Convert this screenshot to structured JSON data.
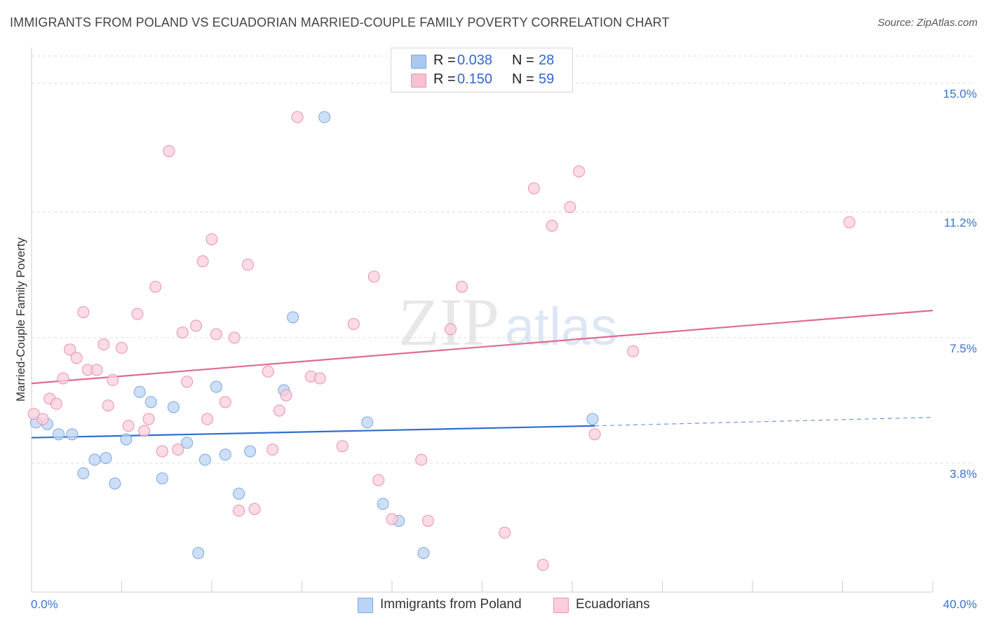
{
  "title": "IMMIGRANTS FROM POLAND VS ECUADORIAN MARRIED-COUPLE FAMILY POVERTY CORRELATION CHART",
  "source": "Source: ZipAtlas.com",
  "watermark": {
    "zip": "ZIP",
    "atlas": "atlas"
  },
  "legend_top": {
    "rows": [
      {
        "r_label": "R =",
        "r_value": "0.038",
        "n_label": "N =",
        "n_value": "28",
        "color": "#aac8f0",
        "border": "#7aa6e0"
      },
      {
        "r_label": "R =",
        "r_value": "0.150",
        "n_label": "N =",
        "n_value": "59",
        "color": "#f8c0d0",
        "border": "#ec90ac"
      }
    ]
  },
  "legend_bottom": [
    {
      "label": "Immigrants from Poland",
      "color": "#bcd4f4",
      "border": "#7aa6e0"
    },
    {
      "label": "Ecuadorians",
      "color": "#f9cfdc",
      "border": "#ec90ac"
    }
  ],
  "chart_data": {
    "type": "scatter",
    "title": "IMMIGRANTS FROM POLAND VS ECUADORIAN MARRIED-COUPLE FAMILY POVERTY CORRELATION CHART",
    "xlabel": "",
    "ylabel": "Married-Couple Family Poverty",
    "xlim": [
      0,
      40
    ],
    "ylim": [
      0,
      15.8
    ],
    "x_tick_labels": [
      "0.0%",
      "40.0%"
    ],
    "y_ticks": [
      3.8,
      7.5,
      11.2,
      15.0
    ],
    "y_tick_labels": [
      "3.8%",
      "7.5%",
      "11.2%",
      "15.0%"
    ],
    "series": [
      {
        "name": "Immigrants from Poland",
        "color": "#7aa6e0",
        "fill": "#bcd4f4",
        "line_color": "#2f6fcf",
        "trend": {
          "x0": 0,
          "y0": 4.55,
          "x1": 25,
          "y1": 4.9,
          "dash_to_x": 40,
          "dash_to_y": 5.15
        },
        "points": [
          [
            0.2,
            5.0
          ],
          [
            0.7,
            4.95
          ],
          [
            1.2,
            4.65
          ],
          [
            1.8,
            4.65
          ],
          [
            2.3,
            3.5
          ],
          [
            2.8,
            3.9
          ],
          [
            3.3,
            3.95
          ],
          [
            3.7,
            3.2
          ],
          [
            4.2,
            4.5
          ],
          [
            4.8,
            5.9
          ],
          [
            5.3,
            5.6
          ],
          [
            5.8,
            3.35
          ],
          [
            6.3,
            5.45
          ],
          [
            6.9,
            4.4
          ],
          [
            7.4,
            1.15
          ],
          [
            7.7,
            3.9
          ],
          [
            8.2,
            6.05
          ],
          [
            8.6,
            4.05
          ],
          [
            9.2,
            2.9
          ],
          [
            9.7,
            4.15
          ],
          [
            11.2,
            5.95
          ],
          [
            11.6,
            8.1
          ],
          [
            13.0,
            14.0
          ],
          [
            14.9,
            5.0
          ],
          [
            15.6,
            2.6
          ],
          [
            16.3,
            2.1
          ],
          [
            17.4,
            1.15
          ],
          [
            24.9,
            5.1
          ]
        ]
      },
      {
        "name": "Ecuadorians",
        "color": "#ec90ac",
        "fill": "#f9cfdc",
        "line_color": "#e06a92",
        "trend": {
          "x0": 0,
          "y0": 6.15,
          "x1": 40,
          "y1": 8.3
        },
        "points": [
          [
            0.1,
            5.25
          ],
          [
            0.5,
            5.1
          ],
          [
            0.8,
            5.7
          ],
          [
            1.1,
            5.55
          ],
          [
            1.4,
            6.3
          ],
          [
            1.7,
            7.15
          ],
          [
            2.0,
            6.9
          ],
          [
            2.3,
            8.25
          ],
          [
            2.5,
            6.55
          ],
          [
            2.9,
            6.55
          ],
          [
            3.2,
            7.3
          ],
          [
            3.4,
            5.5
          ],
          [
            3.6,
            6.25
          ],
          [
            4.0,
            7.2
          ],
          [
            4.3,
            4.9
          ],
          [
            4.7,
            8.2
          ],
          [
            5.0,
            4.75
          ],
          [
            5.2,
            5.1
          ],
          [
            5.5,
            9.0
          ],
          [
            5.8,
            4.15
          ],
          [
            6.1,
            13.0
          ],
          [
            6.5,
            4.2
          ],
          [
            6.7,
            7.65
          ],
          [
            6.9,
            6.2
          ],
          [
            7.3,
            7.85
          ],
          [
            7.6,
            9.75
          ],
          [
            7.8,
            5.1
          ],
          [
            8.0,
            10.4
          ],
          [
            8.2,
            7.6
          ],
          [
            8.6,
            5.6
          ],
          [
            9.0,
            7.5
          ],
          [
            9.2,
            2.4
          ],
          [
            9.6,
            9.65
          ],
          [
            9.9,
            2.45
          ],
          [
            10.5,
            6.5
          ],
          [
            10.7,
            4.2
          ],
          [
            11.0,
            5.35
          ],
          [
            11.3,
            5.8
          ],
          [
            11.8,
            14.0
          ],
          [
            12.4,
            6.35
          ],
          [
            12.8,
            6.3
          ],
          [
            13.8,
            4.3
          ],
          [
            14.3,
            7.9
          ],
          [
            15.2,
            9.3
          ],
          [
            15.4,
            3.3
          ],
          [
            16.0,
            2.15
          ],
          [
            17.3,
            3.9
          ],
          [
            17.6,
            2.1
          ],
          [
            18.6,
            7.75
          ],
          [
            19.1,
            9.0
          ],
          [
            21.0,
            1.75
          ],
          [
            22.3,
            11.9
          ],
          [
            22.7,
            0.8
          ],
          [
            23.1,
            10.8
          ],
          [
            23.9,
            11.35
          ],
          [
            24.3,
            12.4
          ],
          [
            25.0,
            4.65
          ],
          [
            26.7,
            7.1
          ],
          [
            36.3,
            10.9
          ]
        ]
      }
    ]
  }
}
